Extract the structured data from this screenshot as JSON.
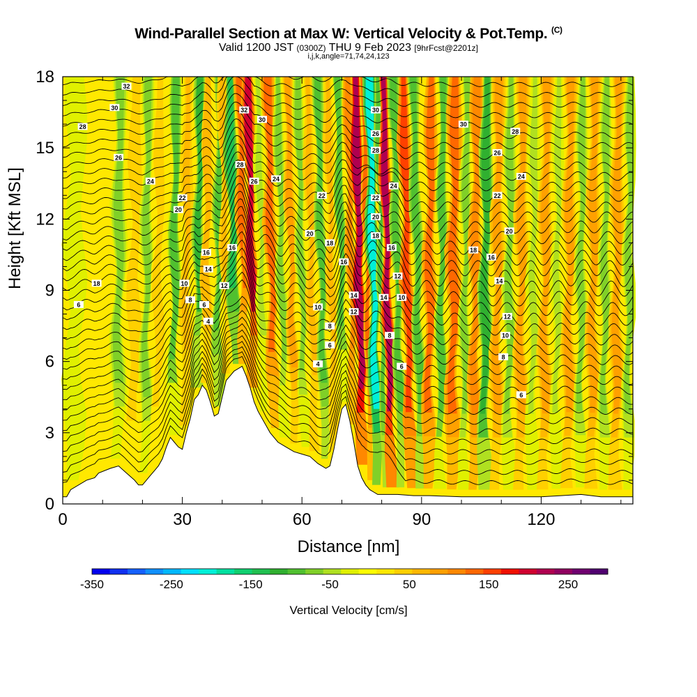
{
  "chart_data": {
    "type": "heatmap",
    "title": "Wind-Parallel Section at Max W: Vertical Velocity & Pot.Temp.",
    "title_mark": "(C)",
    "subtitle_valid": "Valid 1200 JST",
    "subtitle_utc": "(0300Z)",
    "subtitle_date": "THU 9 Feb 2023",
    "subtitle_fcst": "[9hrFcst@2201z]",
    "subtitle_grid": "i,j,k,angle=71,74,24,123",
    "xlabel": "Distance [nm]",
    "ylabel": "Height [Kft MSL]",
    "xlim": [
      0,
      143
    ],
    "ylim": [
      0,
      18
    ],
    "x_ticks": [
      "0",
      "30",
      "60",
      "90",
      "120"
    ],
    "y_ticks": [
      "0",
      "3",
      "6",
      "9",
      "12",
      "15",
      "18"
    ],
    "colorbar": {
      "label": "Vertical Velocity [cm/s]",
      "range": [
        -350,
        300
      ],
      "step": 25,
      "tick_labels": [
        "-350",
        "-250",
        "-150",
        "-50",
        "50",
        "150",
        "250"
      ],
      "colors": [
        "#0000ee",
        "#1030f0",
        "#1560ff",
        "#1090ff",
        "#00b8ff",
        "#00e0ff",
        "#00f0d8",
        "#00e0a0",
        "#10d070",
        "#20c050",
        "#30b030",
        "#50c030",
        "#80d028",
        "#b0e020",
        "#e0f000",
        "#ffff00",
        "#ffe800",
        "#ffd000",
        "#ffb800",
        "#ffa000",
        "#ff8800",
        "#ff6800",
        "#ff4000",
        "#f01000",
        "#d00030",
        "#b00050",
        "#900060",
        "#700070",
        "#500070"
      ]
    },
    "terrain": {
      "x": [
        0,
        1,
        2,
        6,
        8,
        9,
        12,
        14,
        16,
        18,
        19,
        20,
        21,
        22,
        23,
        24,
        25,
        26,
        27,
        28,
        29,
        30,
        31,
        32,
        33,
        34,
        35,
        36,
        37,
        38,
        39,
        40,
        41,
        42,
        43,
        44,
        45,
        46,
        47,
        48,
        49,
        50,
        52,
        54,
        56,
        58,
        60,
        62,
        64,
        66,
        67,
        68,
        69,
        70,
        71,
        72,
        73,
        74,
        75,
        76,
        77,
        78,
        79,
        80,
        84,
        88,
        92,
        100,
        110,
        120,
        125,
        130,
        135,
        143
      ],
      "height_kft": [
        0.3,
        0.3,
        0.6,
        1.0,
        1.1,
        1.3,
        1.5,
        1.6,
        1.3,
        1.0,
        0.8,
        0.8,
        1.0,
        1.2,
        1.4,
        1.6,
        1.9,
        2.4,
        2.8,
        2.6,
        2.4,
        2.3,
        3.0,
        3.6,
        4.4,
        4.6,
        5.0,
        4.8,
        4.3,
        3.7,
        3.8,
        4.5,
        5.2,
        5.4,
        5.6,
        5.7,
        5.8,
        5.4,
        4.9,
        4.3,
        3.9,
        3.6,
        3.0,
        2.6,
        2.4,
        2.2,
        2.1,
        2.0,
        1.7,
        1.5,
        1.6,
        2.3,
        3.2,
        4.0,
        4.2,
        3.5,
        2.6,
        1.6,
        1.1,
        0.8,
        0.6,
        0.5,
        0.4,
        0.4,
        0.4,
        0.35,
        0.35,
        0.3,
        0.3,
        0.3,
        0.35,
        0.4,
        0.3,
        0.3
      ]
    },
    "w_columns": [
      {
        "x": 3,
        "w": -40,
        "halfwidth": 2.5
      },
      {
        "x": 9,
        "w": 30,
        "halfwidth": 3
      },
      {
        "x": 14,
        "w": -70,
        "halfwidth": 1.8
      },
      {
        "x": 18,
        "w": 40,
        "halfwidth": 2
      },
      {
        "x": 21,
        "w": -90,
        "halfwidth": 1.5
      },
      {
        "x": 24,
        "w": 50,
        "halfwidth": 1.5
      },
      {
        "x": 28,
        "w": -100,
        "halfwidth": 1.5
      },
      {
        "x": 31,
        "w": 70,
        "halfwidth": 1.4
      },
      {
        "x": 34,
        "w": -130,
        "halfwidth": 1.4
      },
      {
        "x": 36,
        "w": 80,
        "halfwidth": 1.2
      },
      {
        "x": 39,
        "w": -110,
        "halfwidth": 1.3
      },
      {
        "x": 41,
        "w": 60,
        "halfwidth": 1.2
      },
      {
        "x": 43,
        "w": -170,
        "halfwidth": 1.6
      },
      {
        "x": 45.5,
        "w": 150,
        "halfwidth": 1.5
      },
      {
        "x": 47.5,
        "w": 220,
        "halfwidth": 1.6
      },
      {
        "x": 50,
        "w": -60,
        "halfwidth": 1.3
      },
      {
        "x": 52.5,
        "w": 140,
        "halfwidth": 1.6
      },
      {
        "x": 55,
        "w": -90,
        "halfwidth": 1.3
      },
      {
        "x": 57.5,
        "w": 90,
        "halfwidth": 1.3
      },
      {
        "x": 60,
        "w": -80,
        "halfwidth": 1.3
      },
      {
        "x": 62.5,
        "w": 70,
        "halfwidth": 1.3
      },
      {
        "x": 65,
        "w": -120,
        "halfwidth": 1.3
      },
      {
        "x": 67.5,
        "w": 60,
        "halfwidth": 1.2
      },
      {
        "x": 70,
        "w": -100,
        "halfwidth": 1.3
      },
      {
        "x": 72.5,
        "w": 120,
        "halfwidth": 1.2
      },
      {
        "x": 74.5,
        "w": 270,
        "halfwidth": 1.6
      },
      {
        "x": 76.5,
        "w": 140,
        "halfwidth": 1.0
      },
      {
        "x": 78,
        "w": -230,
        "halfwidth": 1.6
      },
      {
        "x": 80,
        "w": -120,
        "halfwidth": 1.0
      },
      {
        "x": 81.5,
        "w": 250,
        "halfwidth": 1.4
      },
      {
        "x": 84,
        "w": -110,
        "halfwidth": 1.4
      },
      {
        "x": 86.5,
        "w": 180,
        "halfwidth": 1.6
      },
      {
        "x": 89,
        "w": -120,
        "halfwidth": 1.4
      },
      {
        "x": 92,
        "w": 150,
        "halfwidth": 1.6
      },
      {
        "x": 95,
        "w": -100,
        "halfwidth": 1.4
      },
      {
        "x": 98,
        "w": 150,
        "halfwidth": 1.8
      },
      {
        "x": 101,
        "w": -80,
        "halfwidth": 1.4
      },
      {
        "x": 103.5,
        "w": 120,
        "halfwidth": 1.6
      },
      {
        "x": 106,
        "w": -140,
        "halfwidth": 1.6
      },
      {
        "x": 109,
        "w": 110,
        "halfwidth": 1.6
      },
      {
        "x": 112,
        "w": -80,
        "halfwidth": 1.5
      },
      {
        "x": 115,
        "w": 110,
        "halfwidth": 1.6
      },
      {
        "x": 118,
        "w": -60,
        "halfwidth": 1.5
      },
      {
        "x": 121,
        "w": 100,
        "halfwidth": 1.6
      },
      {
        "x": 124,
        "w": -60,
        "halfwidth": 1.4
      },
      {
        "x": 127,
        "w": 110,
        "halfwidth": 1.6
      },
      {
        "x": 130,
        "w": -70,
        "halfwidth": 1.4
      },
      {
        "x": 133,
        "w": 100,
        "halfwidth": 1.6
      },
      {
        "x": 136,
        "w": -80,
        "halfwidth": 1.4
      },
      {
        "x": 139,
        "w": 110,
        "halfwidth": 1.6
      },
      {
        "x": 142,
        "w": -90,
        "halfwidth": 1.4
      }
    ],
    "contour_labels": [
      {
        "text": "32",
        "x": 16,
        "y": 17.6
      },
      {
        "text": "30",
        "x": 13,
        "y": 16.7
      },
      {
        "text": "28",
        "x": 5,
        "y": 15.9
      },
      {
        "text": "26",
        "x": 14,
        "y": 14.6
      },
      {
        "text": "24",
        "x": 22,
        "y": 13.6
      },
      {
        "text": "22",
        "x": 30,
        "y": 12.9
      },
      {
        "text": "20",
        "x": 29,
        "y": 12.4
      },
      {
        "text": "18",
        "x": 8.5,
        "y": 9.3
      },
      {
        "text": "16",
        "x": 36,
        "y": 10.6
      },
      {
        "text": "14",
        "x": 36.5,
        "y": 9.9
      },
      {
        "text": "10",
        "x": 30.5,
        "y": 9.3
      },
      {
        "text": "12",
        "x": 40.5,
        "y": 9.2
      },
      {
        "text": "8",
        "x": 32,
        "y": 8.6
      },
      {
        "text": "6",
        "x": 4,
        "y": 8.4
      },
      {
        "text": "6",
        "x": 35.5,
        "y": 8.4
      },
      {
        "text": "4",
        "x": 36.5,
        "y": 7.7
      },
      {
        "text": "16",
        "x": 42.5,
        "y": 10.8
      },
      {
        "text": "32",
        "x": 45.5,
        "y": 16.6
      },
      {
        "text": "30",
        "x": 50,
        "y": 16.2
      },
      {
        "text": "28",
        "x": 44.5,
        "y": 14.3
      },
      {
        "text": "26",
        "x": 48,
        "y": 13.6
      },
      {
        "text": "24",
        "x": 53.5,
        "y": 13.7
      },
      {
        "text": "22",
        "x": 65,
        "y": 13.0
      },
      {
        "text": "20",
        "x": 62,
        "y": 11.4
      },
      {
        "text": "18",
        "x": 67,
        "y": 11.0
      },
      {
        "text": "16",
        "x": 70.5,
        "y": 10.2
      },
      {
        "text": "14",
        "x": 73,
        "y": 8.8
      },
      {
        "text": "12",
        "x": 73,
        "y": 8.1
      },
      {
        "text": "10",
        "x": 64,
        "y": 8.3
      },
      {
        "text": "8",
        "x": 67,
        "y": 7.5
      },
      {
        "text": "6",
        "x": 67,
        "y": 6.7
      },
      {
        "text": "4",
        "x": 64,
        "y": 5.9
      },
      {
        "text": "30",
        "x": 78.5,
        "y": 16.6
      },
      {
        "text": "26",
        "x": 78.5,
        "y": 15.6
      },
      {
        "text": "28",
        "x": 78.5,
        "y": 14.9
      },
      {
        "text": "24",
        "x": 83,
        "y": 13.4
      },
      {
        "text": "22",
        "x": 78.5,
        "y": 12.9
      },
      {
        "text": "20",
        "x": 78.5,
        "y": 12.1
      },
      {
        "text": "18",
        "x": 78.5,
        "y": 11.3
      },
      {
        "text": "16",
        "x": 82.5,
        "y": 10.8
      },
      {
        "text": "12",
        "x": 84,
        "y": 9.6
      },
      {
        "text": "10",
        "x": 85,
        "y": 8.7
      },
      {
        "text": "14",
        "x": 80.5,
        "y": 8.7
      },
      {
        "text": "8",
        "x": 82,
        "y": 7.1
      },
      {
        "text": "6",
        "x": 85,
        "y": 5.8
      },
      {
        "text": "30",
        "x": 100.5,
        "y": 16.0
      },
      {
        "text": "28",
        "x": 113.5,
        "y": 15.7
      },
      {
        "text": "26",
        "x": 109,
        "y": 14.8
      },
      {
        "text": "24",
        "x": 115,
        "y": 13.8
      },
      {
        "text": "22",
        "x": 109,
        "y": 13.0
      },
      {
        "text": "20",
        "x": 112,
        "y": 11.5
      },
      {
        "text": "18",
        "x": 103,
        "y": 10.7
      },
      {
        "text": "16",
        "x": 107.5,
        "y": 10.4
      },
      {
        "text": "14",
        "x": 109.5,
        "y": 9.4
      },
      {
        "text": "12",
        "x": 111.5,
        "y": 7.9
      },
      {
        "text": "10",
        "x": 111,
        "y": 7.1
      },
      {
        "text": "8",
        "x": 110.5,
        "y": 6.2
      },
      {
        "text": "6",
        "x": 115,
        "y": 4.6
      }
    ]
  }
}
